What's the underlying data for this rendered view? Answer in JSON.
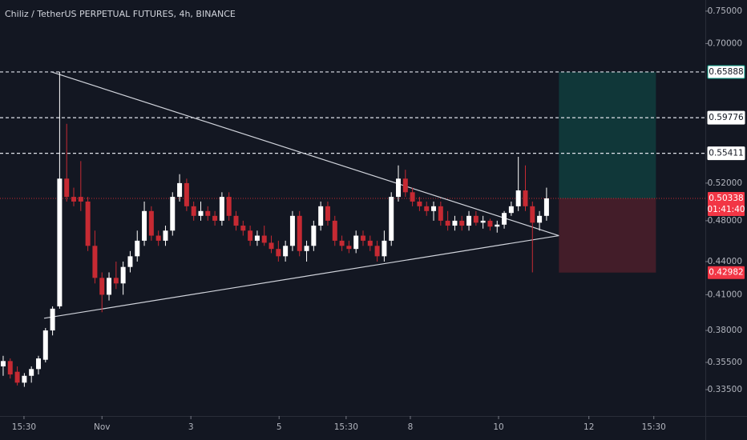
{
  "chart_data": {
    "type": "candlestick",
    "title": "Chiliz / TetherUS PERPETUAL FUTURES, 4h, BINANCE",
    "log_scale": true,
    "grid": false,
    "up_color": "#ffffff",
    "down_color": "#c62a33",
    "ylim": [
      0.3167,
      0.768
    ],
    "yticks": [
      {
        "value": 0.75,
        "label": "0.75000"
      },
      {
        "value": 0.7,
        "label": "0.70000"
      },
      {
        "value": 0.52,
        "label": "0.52000"
      },
      {
        "value": 0.48,
        "label": "0.48000"
      },
      {
        "value": 0.44,
        "label": "0.44000"
      },
      {
        "value": 0.41,
        "label": "0.41000"
      },
      {
        "value": 0.38,
        "label": "0.38000"
      },
      {
        "value": 0.355,
        "label": "0.35500"
      },
      {
        "value": 0.335,
        "label": "0.33500"
      }
    ],
    "xlim": [
      -0.45,
      99.5
    ],
    "xticks": [
      {
        "value": 2.95,
        "label": "15:30"
      },
      {
        "value": 14,
        "label": "Nov"
      },
      {
        "value": 26.6,
        "label": "3"
      },
      {
        "value": 39.1,
        "label": "5"
      },
      {
        "value": 48.6,
        "label": "15:30"
      },
      {
        "value": 57.7,
        "label": "8"
      },
      {
        "value": 70.2,
        "label": "10"
      },
      {
        "value": 83,
        "label": "12"
      },
      {
        "value": 92.2,
        "label": "15:30"
      }
    ],
    "open": [
      0.352,
      0.356,
      0.348,
      0.34,
      0.345,
      0.35,
      0.357,
      0.38,
      0.4,
      0.525,
      0.505,
      0.505,
      0.5,
      0.455,
      0.425,
      0.41,
      0.425,
      0.42,
      0.435,
      0.445,
      0.46,
      0.49,
      0.465,
      0.46,
      0.47,
      0.505,
      0.52,
      0.495,
      0.485,
      0.49,
      0.485,
      0.48,
      0.505,
      0.485,
      0.475,
      0.47,
      0.46,
      0.465,
      0.458,
      0.452,
      0.445,
      0.455,
      0.485,
      0.45,
      0.455,
      0.475,
      0.495,
      0.48,
      0.46,
      0.455,
      0.452,
      0.465,
      0.46,
      0.455,
      0.445,
      0.46,
      0.505,
      0.525,
      0.51,
      0.5,
      0.495,
      0.49,
      0.495,
      0.48,
      0.475,
      0.48,
      0.475,
      0.485,
      0.478,
      0.48,
      0.474,
      0.476,
      0.488,
      0.495,
      0.512,
      0.495,
      0.478,
      0.485
    ],
    "high": [
      0.36,
      0.358,
      0.352,
      0.347,
      0.352,
      0.36,
      0.382,
      0.4,
      0.659,
      0.59,
      0.515,
      0.545,
      0.505,
      0.47,
      0.43,
      0.43,
      0.44,
      0.44,
      0.45,
      0.47,
      0.5,
      0.495,
      0.47,
      0.475,
      0.51,
      0.53,
      0.525,
      0.5,
      0.5,
      0.495,
      0.49,
      0.51,
      0.51,
      0.49,
      0.48,
      0.475,
      0.47,
      0.475,
      0.465,
      0.46,
      0.46,
      0.49,
      0.49,
      0.46,
      0.48,
      0.5,
      0.5,
      0.485,
      0.465,
      0.46,
      0.47,
      0.47,
      0.465,
      0.46,
      0.47,
      0.51,
      0.54,
      0.535,
      0.515,
      0.505,
      0.5,
      0.5,
      0.5,
      0.49,
      0.485,
      0.485,
      0.49,
      0.49,
      0.485,
      0.482,
      0.48,
      0.49,
      0.5,
      0.55,
      0.54,
      0.5,
      0.49,
      0.515
    ],
    "low": [
      0.345,
      0.343,
      0.338,
      0.337,
      0.34,
      0.346,
      0.355,
      0.376,
      0.398,
      0.5,
      0.495,
      0.49,
      0.45,
      0.42,
      0.395,
      0.405,
      0.415,
      0.41,
      0.43,
      0.44,
      0.455,
      0.46,
      0.455,
      0.455,
      0.465,
      0.5,
      0.49,
      0.48,
      0.48,
      0.48,
      0.475,
      0.475,
      0.48,
      0.47,
      0.465,
      0.455,
      0.455,
      0.455,
      0.448,
      0.44,
      0.44,
      0.45,
      0.445,
      0.44,
      0.45,
      0.47,
      0.475,
      0.455,
      0.45,
      0.448,
      0.448,
      0.455,
      0.45,
      0.44,
      0.44,
      0.455,
      0.5,
      0.505,
      0.495,
      0.49,
      0.485,
      0.48,
      0.475,
      0.47,
      0.47,
      0.47,
      0.47,
      0.475,
      0.472,
      0.47,
      0.468,
      0.472,
      0.485,
      0.49,
      0.49,
      0.43,
      0.47,
      0.48
    ],
    "close": [
      0.356,
      0.346,
      0.34,
      0.345,
      0.35,
      0.358,
      0.38,
      0.398,
      0.525,
      0.505,
      0.5,
      0.5,
      0.455,
      0.425,
      0.41,
      0.425,
      0.42,
      0.435,
      0.445,
      0.46,
      0.49,
      0.465,
      0.46,
      0.47,
      0.505,
      0.52,
      0.495,
      0.485,
      0.49,
      0.485,
      0.48,
      0.505,
      0.485,
      0.475,
      0.47,
      0.46,
      0.465,
      0.458,
      0.452,
      0.445,
      0.455,
      0.485,
      0.45,
      0.455,
      0.475,
      0.495,
      0.48,
      0.46,
      0.455,
      0.452,
      0.465,
      0.46,
      0.455,
      0.445,
      0.46,
      0.505,
      0.525,
      0.51,
      0.5,
      0.495,
      0.49,
      0.495,
      0.48,
      0.475,
      0.48,
      0.475,
      0.485,
      0.478,
      0.48,
      0.474,
      0.476,
      0.488,
      0.495,
      0.512,
      0.495,
      0.478,
      0.485,
      0.50338
    ],
    "levels": [
      0.65888,
      0.59776,
      0.55411
    ],
    "current_price": {
      "value": 0.50338,
      "countdown": "01:41:40"
    },
    "position": {
      "x_start": 78.75,
      "x_end": 92.5,
      "stop": 0.42982
    },
    "trendlines": [
      {
        "x": [
          6.82,
          78.75
        ],
        "y": [
          0.659,
          0.465
        ]
      },
      {
        "x": [
          5.8,
          78.75
        ],
        "y": [
          0.39,
          0.465
        ]
      }
    ]
  }
}
